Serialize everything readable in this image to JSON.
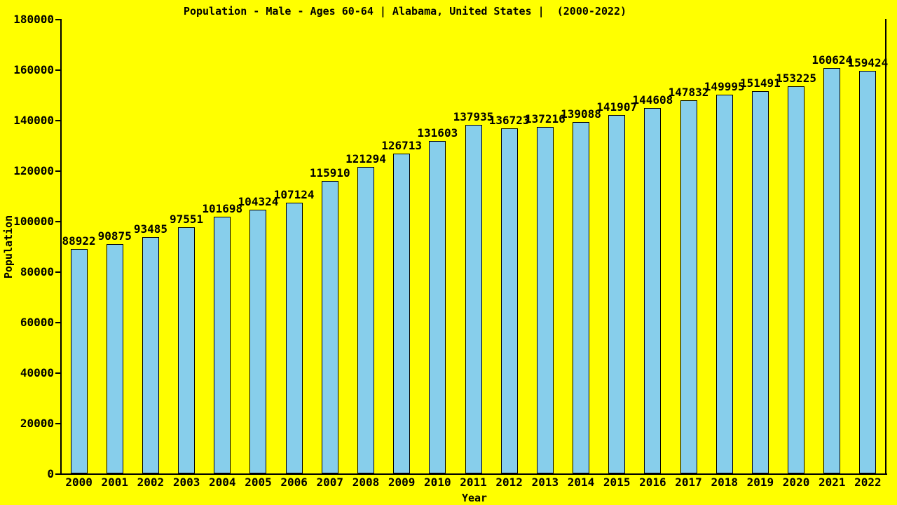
{
  "chart_data": {
    "type": "bar",
    "title": "Population - Male - Ages 60-64 | Alabama, United States |  (2000-2022)",
    "xlabel": "Year",
    "ylabel": "Population",
    "categories": [
      "2000",
      "2001",
      "2002",
      "2003",
      "2004",
      "2005",
      "2006",
      "2007",
      "2008",
      "2009",
      "2010",
      "2011",
      "2012",
      "2013",
      "2014",
      "2015",
      "2016",
      "2017",
      "2018",
      "2019",
      "2020",
      "2021",
      "2022"
    ],
    "values": [
      88922,
      90875,
      93485,
      97551,
      101698,
      104324,
      107124,
      115910,
      121294,
      126713,
      131603,
      137935,
      136723,
      137216,
      139088,
      141907,
      144608,
      147832,
      149995,
      151491,
      153225,
      160624,
      159424
    ],
    "ylim": [
      0,
      180000
    ],
    "y_ticks": [
      0,
      20000,
      40000,
      60000,
      80000,
      100000,
      120000,
      140000,
      160000,
      180000
    ],
    "grid": false,
    "legend": "none",
    "data_labels": true,
    "colors": {
      "background": "#ffff00",
      "bar_fill": "#87ceeb",
      "bar_border": "#000000",
      "axis": "#000000",
      "text": "#000000"
    }
  }
}
